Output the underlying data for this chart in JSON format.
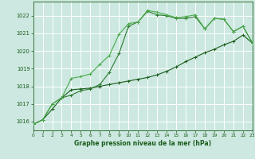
{
  "title": "Graphe pression niveau de la mer (hPa)",
  "bg_color": "#cce8e0",
  "grid_color": "#b0d8d0",
  "line_color_dark": "#1a5c1a",
  "line_color_mid": "#2d7a2d",
  "line_color_light": "#4aaa4a",
  "xmin": 0,
  "xmax": 23,
  "ymin": 1015.5,
  "ymax": 1022.8,
  "yticks": [
    1016,
    1017,
    1018,
    1019,
    1020,
    1021,
    1022
  ],
  "xticks": [
    0,
    1,
    2,
    3,
    4,
    5,
    6,
    7,
    8,
    9,
    10,
    11,
    12,
    13,
    14,
    15,
    16,
    17,
    18,
    19,
    20,
    21,
    22,
    23
  ],
  "line1_x": [
    0,
    1,
    2,
    3,
    4,
    5,
    6,
    7,
    8,
    9,
    10,
    11,
    12,
    13,
    14,
    15,
    16,
    17,
    18,
    19,
    20,
    21,
    22,
    23
  ],
  "line1_y": [
    1015.85,
    1016.1,
    1016.7,
    1017.35,
    1017.8,
    1017.85,
    1017.9,
    1018.0,
    1018.1,
    1018.2,
    1018.3,
    1018.4,
    1018.5,
    1018.65,
    1018.85,
    1019.1,
    1019.4,
    1019.65,
    1019.9,
    1020.1,
    1020.35,
    1020.55,
    1020.9,
    1020.45
  ],
  "line2_x": [
    0,
    1,
    2,
    3,
    4,
    5,
    6,
    7,
    8,
    9,
    10,
    11,
    12,
    13,
    14,
    15,
    16,
    17,
    18,
    19,
    20,
    21,
    22,
    23
  ],
  "line2_y": [
    1015.85,
    1016.1,
    1017.0,
    1017.35,
    1017.5,
    1017.75,
    1017.85,
    1018.1,
    1018.8,
    1019.85,
    1021.4,
    1021.65,
    1022.25,
    1022.05,
    1022.0,
    1021.85,
    1021.85,
    1021.95,
    1021.25,
    1021.85,
    1021.8,
    1021.1,
    1021.4,
    1020.45
  ],
  "line3_x": [
    0,
    1,
    2,
    3,
    4,
    5,
    6,
    7,
    8,
    9,
    10,
    11,
    12,
    13,
    14,
    15,
    16,
    17,
    18,
    19,
    20,
    21,
    22,
    23
  ],
  "line3_y": [
    1015.85,
    1016.1,
    1017.0,
    1017.35,
    1018.45,
    1018.55,
    1018.7,
    1019.25,
    1019.75,
    1020.95,
    1021.55,
    1021.65,
    1022.3,
    1022.2,
    1022.05,
    1021.9,
    1021.95,
    1022.05,
    1021.25,
    1021.85,
    1021.8,
    1021.1,
    1021.4,
    1020.45
  ]
}
